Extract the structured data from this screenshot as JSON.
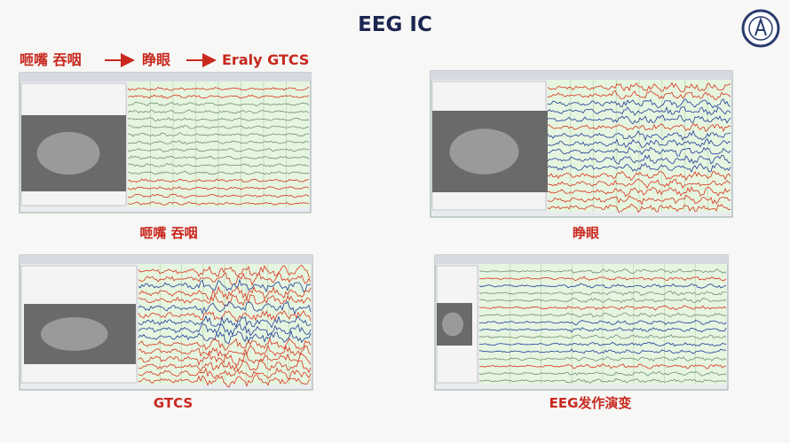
{
  "title": "EEG IC",
  "sequence": [
    "咂嘴 吞咽",
    "睁眼",
    "Eraly GTCS"
  ],
  "panels": [
    {
      "caption": "咂嘴 吞咽"
    },
    {
      "caption": "睁眼"
    },
    {
      "caption": "GTCS"
    },
    {
      "caption": "EEG发作演变"
    }
  ]
}
